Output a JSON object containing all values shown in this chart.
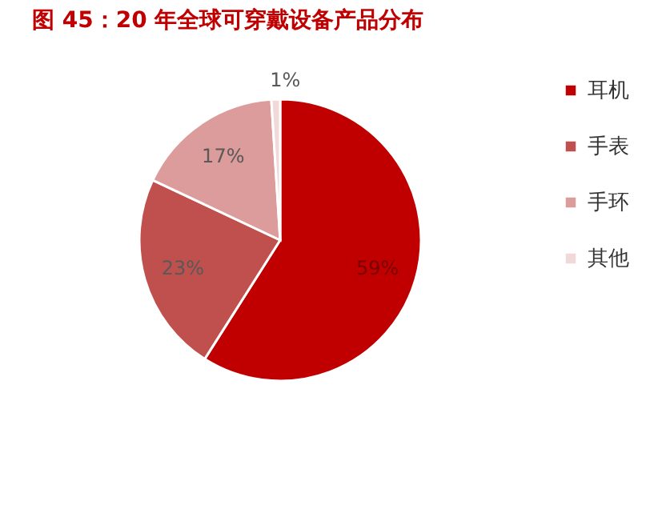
{
  "chart_data": {
    "type": "pie",
    "title": "图 45：20 年全球可穿戴设备产品分布",
    "categories": [
      "耳机",
      "手表",
      "手环",
      "其他"
    ],
    "values": [
      59,
      23,
      17,
      1
    ],
    "colors": [
      "#c00000",
      "#c0504d",
      "#dc9c9b",
      "#f2d9d9"
    ],
    "value_labels": [
      "59%",
      "23%",
      "17%",
      "1%"
    ],
    "legend": "right"
  }
}
